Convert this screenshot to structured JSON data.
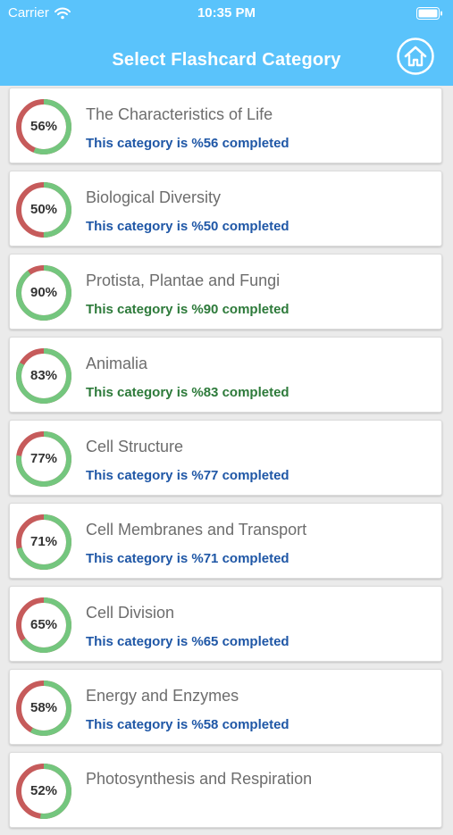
{
  "status_bar": {
    "carrier": "Carrier",
    "time": "10:35 PM"
  },
  "header": {
    "title": "Select Flashcard Category",
    "home_icon": "home-icon"
  },
  "colors": {
    "header_bg": "#5ac3fb",
    "ring_done": "#74c67e",
    "ring_remaining": "#c65b5b",
    "subtitle_blue": "#1f57a6",
    "subtitle_green": "#2d7a3a"
  },
  "categories": [
    {
      "title": "The Characteristics of Life",
      "percent": 56,
      "percent_label": "56%",
      "subtitle": "This category is %56 completed",
      "status": "blue"
    },
    {
      "title": "Biological Diversity",
      "percent": 50,
      "percent_label": "50%",
      "subtitle": "This category is %50 completed",
      "status": "blue"
    },
    {
      "title": "Protista, Plantae and Fungi",
      "percent": 90,
      "percent_label": "90%",
      "subtitle": "This category is %90 completed",
      "status": "green"
    },
    {
      "title": "Animalia",
      "percent": 83,
      "percent_label": "83%",
      "subtitle": "This category is %83 completed",
      "status": "green"
    },
    {
      "title": "Cell Structure",
      "percent": 77,
      "percent_label": "77%",
      "subtitle": "This category is %77 completed",
      "status": "blue"
    },
    {
      "title": "Cell Membranes and Transport",
      "percent": 71,
      "percent_label": "71%",
      "subtitle": "This category is %71 completed",
      "status": "blue"
    },
    {
      "title": "Cell Division",
      "percent": 65,
      "percent_label": "65%",
      "subtitle": "This category is %65 completed",
      "status": "blue"
    },
    {
      "title": "Energy and Enzymes",
      "percent": 58,
      "percent_label": "58%",
      "subtitle": "This category is %58 completed",
      "status": "blue"
    },
    {
      "title": "Photosynthesis and Respiration",
      "percent": 52,
      "percent_label": "52%",
      "subtitle": "",
      "status": "blue"
    }
  ]
}
